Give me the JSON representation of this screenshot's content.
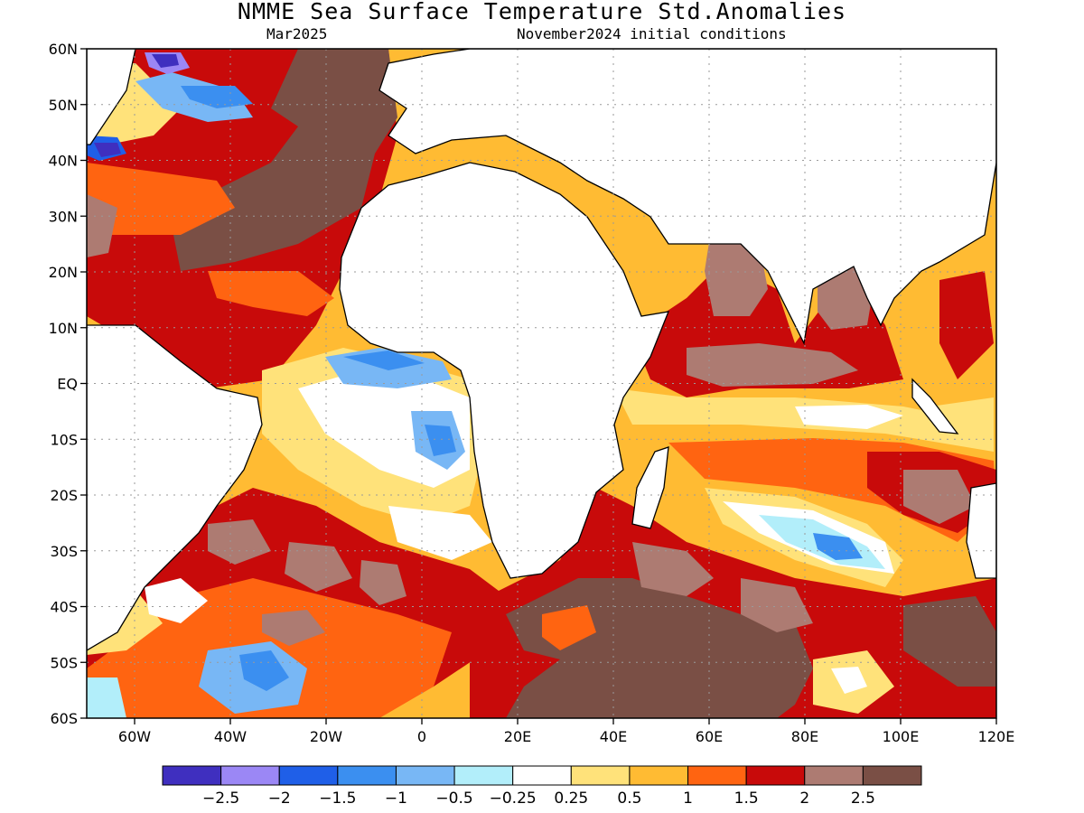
{
  "title": "NMME Sea Surface Temperature Std.Anomalies",
  "subtitle_left": "Mar2025",
  "subtitle_right": "November2024 initial conditions",
  "lat_labels": [
    "60N",
    "50N",
    "40N",
    "30N",
    "20N",
    "10N",
    "EQ",
    "10S",
    "20S",
    "30S",
    "40S",
    "50S",
    "60S"
  ],
  "lon_labels": [
    "60W",
    "40W",
    "20W",
    "0",
    "20E",
    "40E",
    "60E",
    "80E",
    "100E",
    "120E"
  ],
  "legend": {
    "colors": [
      "#3f2fbf",
      "#9b87f5",
      "#1f5fe8",
      "#3b8ff0",
      "#78b7f5",
      "#b2eefa",
      "#ffffff",
      "#ffe27a",
      "#ffbb33",
      "#ff6411",
      "#c80a0a",
      "#ad7b72",
      "#7a4f45"
    ],
    "labels": [
      "−2.5",
      "−2",
      "−1.5",
      "−1",
      "−0.5",
      "−0.25",
      "0.25",
      "0.5",
      "1",
      "1.5",
      "2",
      "2.5"
    ]
  },
  "map_extent": {
    "lon_min": -70,
    "lon_max": 120,
    "lat_min": -60,
    "lat_max": 60
  }
}
